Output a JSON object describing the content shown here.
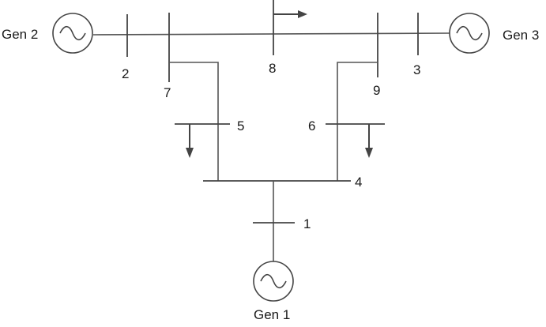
{
  "buses": {
    "b1": "1",
    "b2": "2",
    "b3": "3",
    "b4": "4",
    "b5": "5",
    "b6": "6",
    "b7": "7",
    "b8": "8",
    "b9": "9"
  },
  "generators": {
    "gen1": "Gen 1",
    "gen2": "Gen 2",
    "gen3": "Gen 3"
  },
  "colors": {
    "line": "#555555",
    "text": "#1a1a1a"
  },
  "icons": {
    "generator": "generator-symbol-icon",
    "load": "load-arrow-icon"
  }
}
